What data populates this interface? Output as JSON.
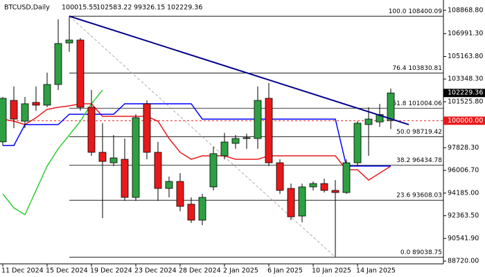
{
  "chart_data": {
    "type": "candlestick",
    "title": "BTCUSD,Daily",
    "categories": [
      "11 Dec 2024",
      null,
      null,
      null,
      "15 Dec 2024",
      null,
      null,
      null,
      "19 Dec 2024",
      null,
      null,
      null,
      "23 Dec 2024",
      null,
      null,
      null,
      "28 Dec 2024",
      null,
      null,
      null,
      "2 Jan 2025",
      null,
      null,
      null,
      "6 Jan 2025",
      null,
      null,
      null,
      "10 Jan 2025",
      null,
      null,
      null,
      "14 Jan 2025",
      null,
      null,
      null
    ],
    "candles": {
      "open": [
        98300,
        101630,
        99960,
        101470,
        101250,
        102910,
        106250,
        106480,
        101080,
        97460,
        96620,
        96900,
        93840,
        101360,
        97460,
        94560,
        95120,
        93290,
        92010,
        94680,
        97180,
        98180,
        98570,
        98570,
        101800,
        96620,
        94560,
        92340,
        94680,
        94950,
        94400,
        94230,
        96620,
        99690,
        99900,
        100015.55
      ],
      "high": [
        101900,
        102750,
        101910,
        102750,
        103860,
        108150,
        108400.09,
        106640,
        102470,
        99800,
        98850,
        98570,
        100520,
        101630,
        98300,
        95510,
        95790,
        93840,
        94120,
        97900,
        99020,
        98850,
        98960,
        102750,
        103030,
        96900,
        94950,
        94950,
        95120,
        95340,
        95230,
        96900,
        99960,
        101080,
        101350,
        102583.22
      ],
      "low": [
        98000,
        99400,
        99400,
        100800,
        101080,
        102470,
        105530,
        100800,
        97180,
        92170,
        96350,
        93560,
        93560,
        96900,
        93560,
        93840,
        92730,
        91780,
        91610,
        94400,
        96900,
        97740,
        97740,
        97740,
        96350,
        94120,
        92010,
        91840,
        94400,
        94230,
        89038.75,
        94120,
        96350,
        97180,
        99500,
        99326.15
      ],
      "close": [
        101800,
        100130,
        101360,
        101250,
        102910,
        106200,
        106480,
        101080,
        97460,
        96730,
        97010,
        93840,
        100240,
        97460,
        94560,
        95120,
        93120,
        92010,
        93840,
        97350,
        98290,
        98570,
        98630,
        101630,
        96620,
        94400,
        92280,
        94680,
        94950,
        94400,
        94230,
        96620,
        99800,
        100130,
        100500,
        102229.36
      ],
      "up_color": "#2ea043",
      "down_color": "#e8191a"
    },
    "lines": [
      {
        "color": "#e8191a",
        "values": [
          100130,
          99960,
          99690,
          100240,
          100910,
          101080,
          101190,
          101360,
          101360,
          100350,
          100350,
          100350,
          100350,
          100350,
          99960,
          98570,
          97460,
          96900,
          97180,
          97180,
          97180,
          96900,
          96900,
          96900,
          97180,
          97180,
          97180,
          97180,
          97180,
          97180,
          97180,
          96060,
          96060,
          95230,
          95790,
          96350
        ]
      },
      {
        "color": "#0000ff",
        "values": [
          98010,
          98010,
          99690,
          99690,
          99690,
          99690,
          100520,
          100520,
          100520,
          100520,
          100520,
          101360,
          101360,
          101360,
          101360,
          101360,
          101360,
          101360,
          100130,
          100130,
          100130,
          100130,
          100130,
          100130,
          100130,
          100130,
          100130,
          100130,
          100130,
          100130,
          100130,
          96350,
          96350,
          96350,
          96350,
          96350
        ]
      },
      {
        "color": "#32cd32",
        "values": [
          94120,
          93000,
          92450,
          94400,
          96350,
          97740,
          98850,
          99960,
          101360,
          102470,
          null,
          null,
          null,
          null,
          null,
          null,
          null,
          null,
          null,
          null,
          null,
          null,
          null,
          null,
          null,
          null,
          null,
          null,
          null,
          null,
          null,
          null,
          null,
          null,
          null,
          null
        ]
      }
    ],
    "trendline": {
      "from": [
        6,
        108400.09
      ],
      "to": [
        35,
        100150
      ],
      "color": "#00008b"
    },
    "fib_diagonal": {
      "from": [
        6,
        108400.09
      ],
      "to": [
        30,
        89038.75
      ],
      "color": "#999999"
    },
    "fib_levels": [
      {
        "value": 108400.09,
        "label": "100.0 108400.09"
      },
      {
        "value": 103830.81,
        "label": "76.4 103830.81"
      },
      {
        "value": 101004.06,
        "label": "61.8 101004.06"
      },
      {
        "value": 98719.42,
        "label": "50.0 98719.42"
      },
      {
        "value": 96434.78,
        "label": "38.2 96434.78"
      },
      {
        "value": 93608.03,
        "label": "23.6 93608.03"
      },
      {
        "value": 89038.75,
        "label": "0.0 89038.75"
      }
    ],
    "price_line": {
      "value": 100000,
      "label": "100000.00",
      "color": "#e8191a"
    },
    "last_price": {
      "value": 102229.36,
      "label": "102229.36"
    },
    "ylim": [
      88500,
      109420
    ],
    "yticks": [
      {
        "value": 108868.8,
        "label": "108868.80"
      },
      {
        "value": 106991.3,
        "label": "106991.30"
      },
      {
        "value": 105163.8,
        "label": "105163.80"
      },
      {
        "value": 103348.3,
        "label": "103348.30"
      },
      {
        "value": 101525.8,
        "label": "101525.80"
      },
      {
        "value": 97828.3,
        "label": "97828.30"
      },
      {
        "value": 96006.7,
        "label": "96006.70"
      },
      {
        "value": 94185,
        "label": "94185.00"
      },
      {
        "value": 92363.5,
        "label": "92363.50"
      },
      {
        "value": 90541.9,
        "label": "90541.90"
      },
      {
        "value": 88720,
        "label": "88720.00"
      }
    ]
  }
}
